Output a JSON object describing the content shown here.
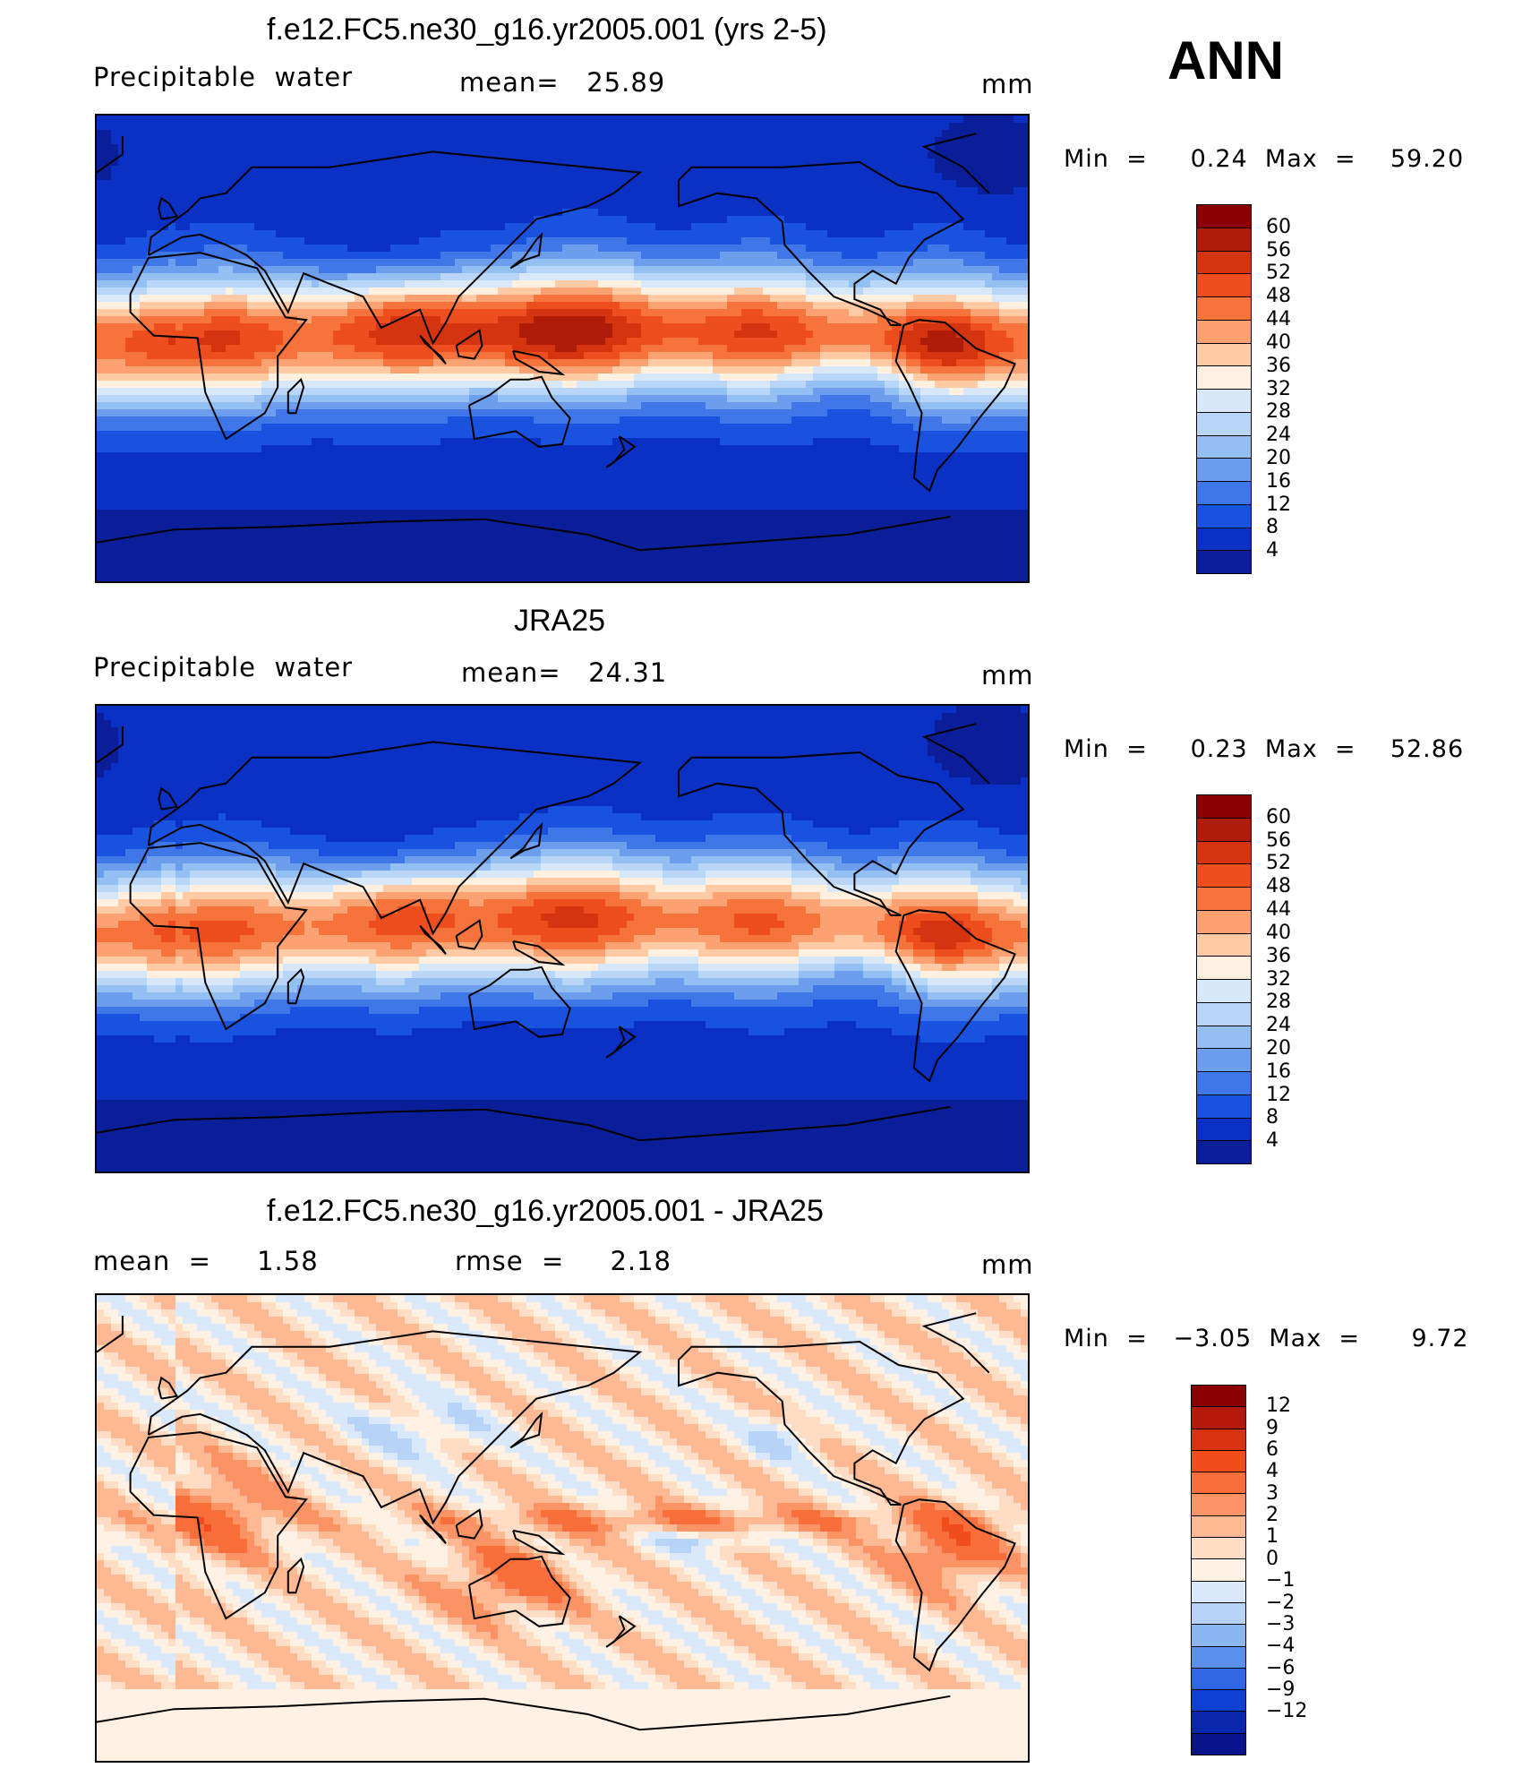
{
  "season": "ANN",
  "panels": [
    {
      "title": "f.e12.FC5.ne30_g16.yr2005.001 (yrs 2-5)",
      "left_label": "Precipitable  water",
      "mid_label": "mean=   25.89",
      "units": "mm",
      "minmax": "Min  =     0.24  Max  =    59.20",
      "field": "model",
      "cbar": {
        "colors": [
          "#8b0000",
          "#b01c0a",
          "#d43410",
          "#ee4e1e",
          "#f7733c",
          "#fca272",
          "#ffcaa4",
          "#fff0e0",
          "#d8e8fb",
          "#b9d5f7",
          "#94bff3",
          "#6d9eee",
          "#3f76e8",
          "#1a52e0",
          "#0a30c4",
          "#0a1e9a"
        ],
        "labels": [
          "60",
          "56",
          "52",
          "48",
          "44",
          "40",
          "36",
          "32",
          "28",
          "24",
          "20",
          "16",
          "12",
          "8",
          "4"
        ]
      }
    },
    {
      "title": "JRA25",
      "left_label": "Precipitable  water",
      "mid_label": "mean=   24.31",
      "units": "mm",
      "minmax": "Min  =     0.23  Max  =    52.86",
      "field": "obs",
      "cbar": {
        "colors": [
          "#8b0000",
          "#b01c0a",
          "#d43410",
          "#ee4e1e",
          "#f7733c",
          "#fca272",
          "#ffcaa4",
          "#fff0e0",
          "#d8e8fb",
          "#b9d5f7",
          "#94bff3",
          "#6d9eee",
          "#3f76e8",
          "#1a52e0",
          "#0a30c4",
          "#0a1e9a"
        ],
        "labels": [
          "60",
          "56",
          "52",
          "48",
          "44",
          "40",
          "36",
          "32",
          "28",
          "24",
          "20",
          "16",
          "12",
          "8",
          "4"
        ]
      }
    },
    {
      "title": "f.e12.FC5.ne30_g16.yr2005.001 - JRA25",
      "left_label": "mean  =     1.58",
      "mid_label": "rmse  =     2.18",
      "units": "mm",
      "minmax": "Min  =   −3.05  Max  =      9.72",
      "field": "diff",
      "cbar": {
        "colors": [
          "#8b0000",
          "#b51a08",
          "#d93210",
          "#f04c1c",
          "#f86e3a",
          "#fc9364",
          "#feb892",
          "#ffdcc4",
          "#fff1e4",
          "#d9e8fb",
          "#b7d3f7",
          "#8ab6f2",
          "#5b90ec",
          "#2e66e4",
          "#0f40d4",
          "#0a26ac",
          "#0a148a"
        ],
        "labels": [
          "12",
          "9",
          "6",
          "4",
          "3",
          "2",
          "1",
          "0",
          "−1",
          "−2",
          "−3",
          "−4",
          "−6",
          "−9",
          "−12"
        ]
      }
    }
  ]
}
